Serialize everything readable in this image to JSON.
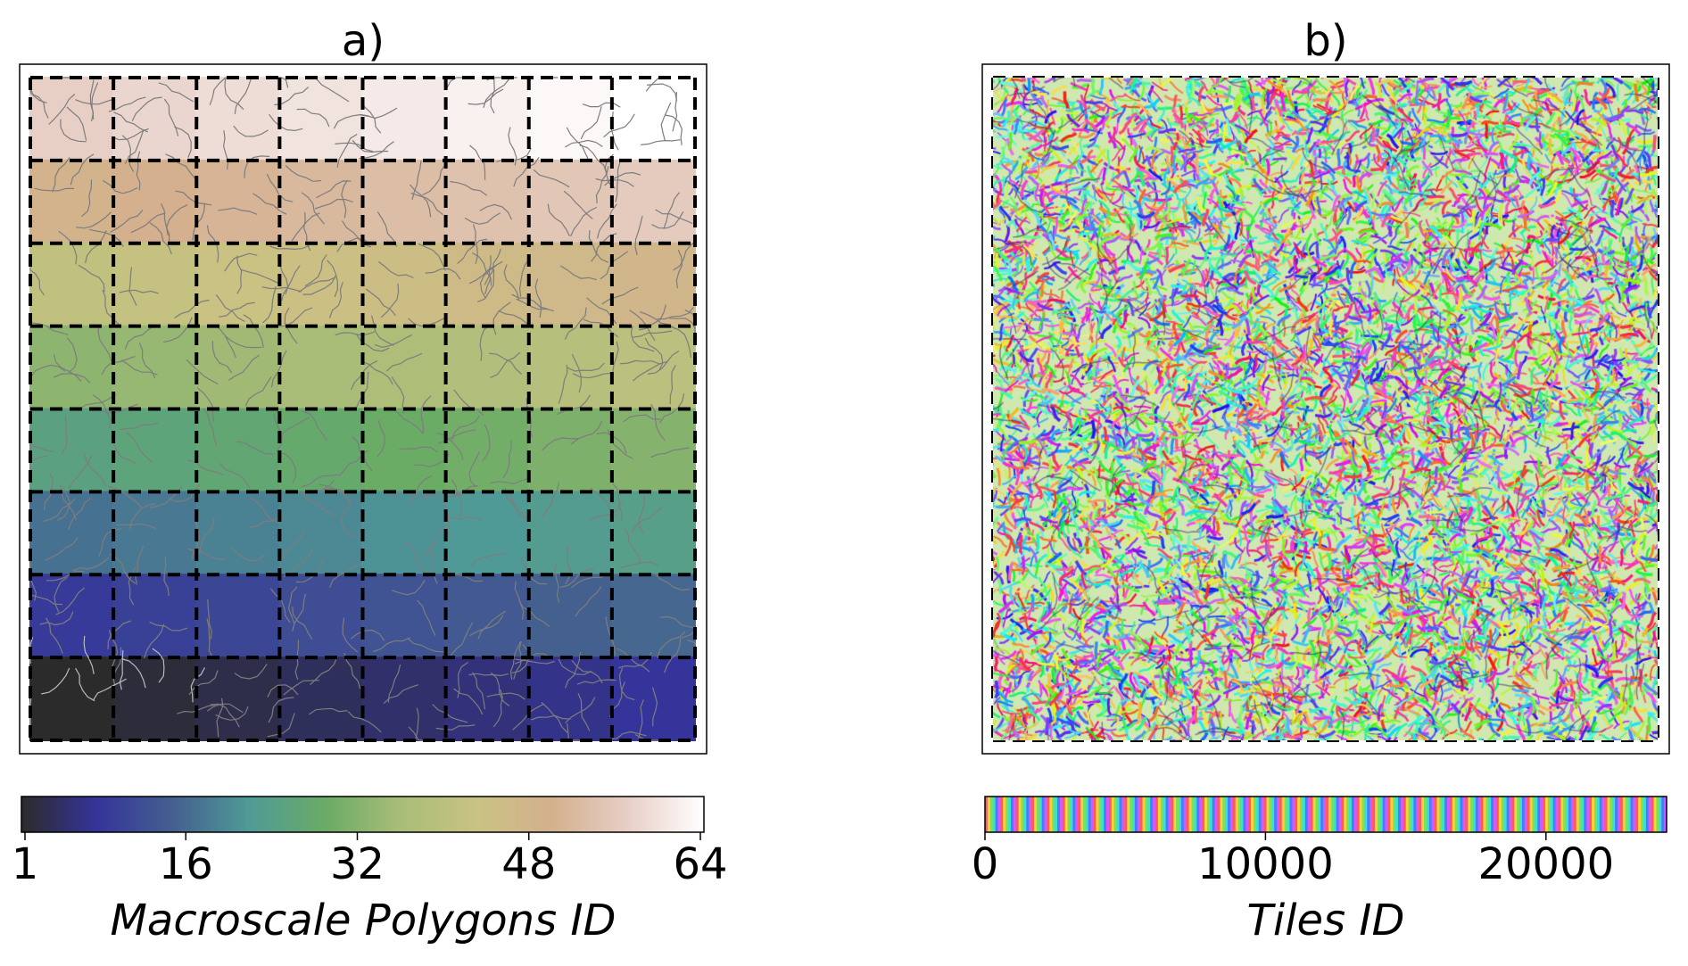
{
  "chart_data": [
    {
      "type": "heatmap",
      "title": "a)",
      "grid": {
        "rows": 8,
        "cols": 8,
        "cell_ids": "1 (bottom-left) to 64 (top-right), row-major from bottom"
      },
      "colorbar": {
        "label": "Macroscale Polygons ID",
        "range": [
          1,
          64
        ],
        "ticks": [
          1,
          16,
          32,
          48,
          64
        ],
        "tick_labels": [
          "1",
          "16",
          "32",
          "48",
          "64"
        ],
        "colors": [
          "#2b2b2b",
          "#35349a",
          "#44608f",
          "#4f9a96",
          "#6aab66",
          "#a9bd78",
          "#c9c282",
          "#d4b08e",
          "#e7cfc6",
          "#ffffff"
        ]
      },
      "overlay": "dashed 8x8 grid, river network in gray"
    },
    {
      "type": "heatmap",
      "title": "b)",
      "grid": {
        "rows": 8,
        "cols": 8
      },
      "colorbar": {
        "label": "Tiles ID",
        "range": [
          0,
          24300
        ],
        "ticks": [
          0,
          10000,
          20000
        ],
        "tick_labels": [
          "0",
          "10000",
          "20000"
        ],
        "colormap": "cyclic rainbow"
      },
      "overlay": "dashed 8x8 grid"
    }
  ]
}
